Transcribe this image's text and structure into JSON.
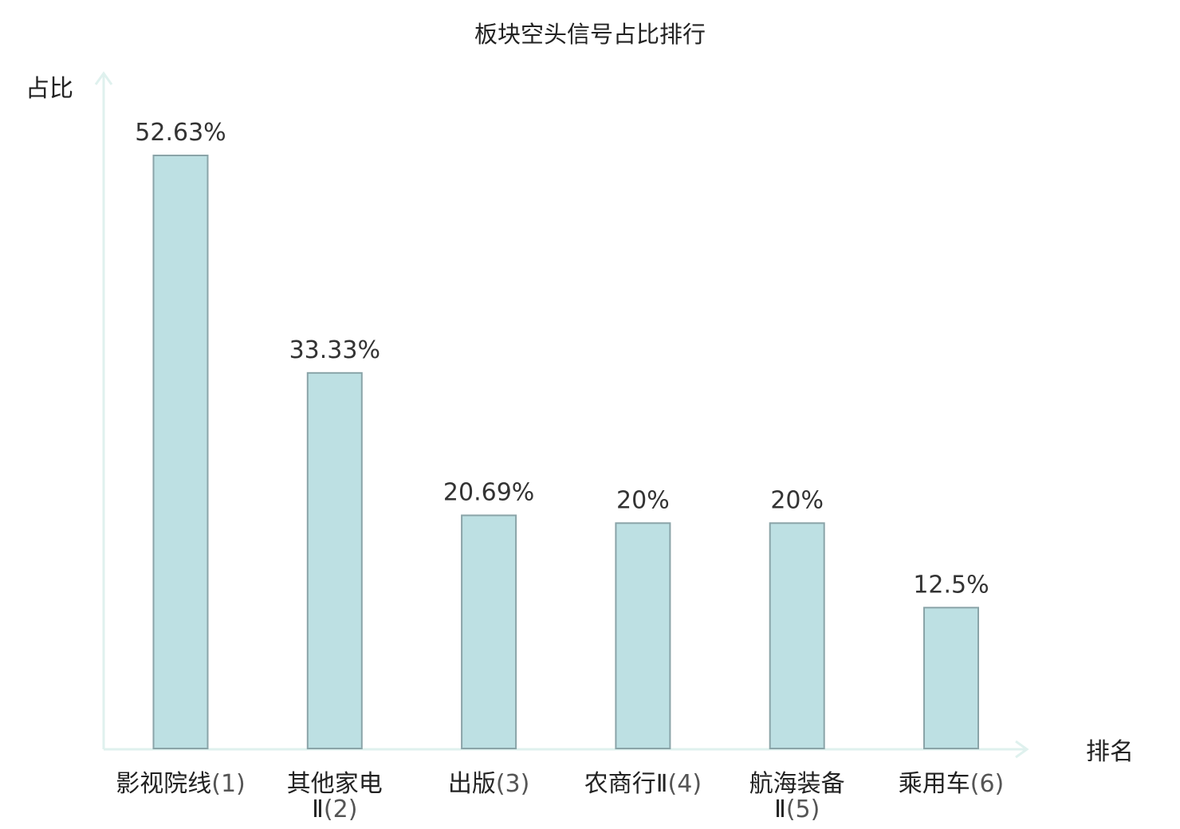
{
  "chart_data": {
    "type": "bar",
    "title": "板块空头信号占比排行",
    "xlabel": "排名",
    "ylabel": "占比",
    "categories": [
      {
        "lines": [
          "影视院线"
        ],
        "rank": "(1)",
        "highlight": false
      },
      {
        "lines": [
          "其他家电",
          "Ⅱ"
        ],
        "rank": "(2)",
        "highlight": false
      },
      {
        "lines": [
          "出版"
        ],
        "rank": "(3)",
        "highlight": false
      },
      {
        "lines": [
          "农商行Ⅱ"
        ],
        "rank": "(4)",
        "highlight": false
      },
      {
        "lines": [
          "航海装备",
          "Ⅱ"
        ],
        "rank": "(5)",
        "highlight": false
      },
      {
        "lines": [
          "乘用车"
        ],
        "rank": "(6)",
        "highlight": true
      }
    ],
    "values": [
      52.63,
      33.33,
      20.69,
      20,
      20,
      12.5
    ],
    "value_labels": [
      "52.63%",
      "33.33%",
      "20.69%",
      "20%",
      "20%",
      "12.5%"
    ],
    "ylim": [
      0,
      52.63
    ],
    "grid": false,
    "colors": {
      "bar_fill": "#bde0e3",
      "bar_stroke": "#8aa4a8",
      "axis": "#dff1ee",
      "highlight": "#e8161b"
    }
  }
}
